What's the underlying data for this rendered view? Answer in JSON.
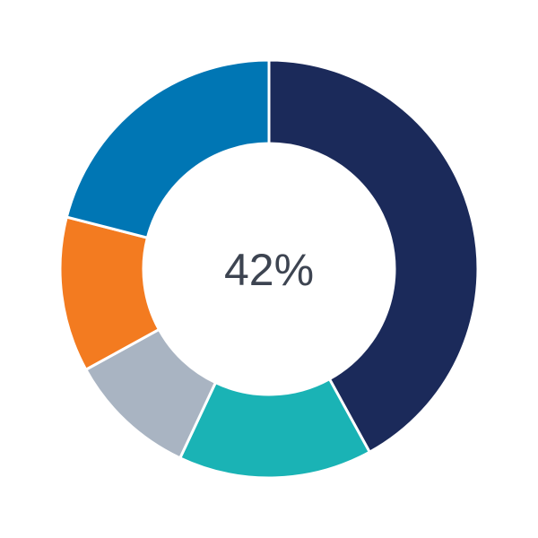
{
  "chart_data": {
    "type": "pie",
    "variant": "donut",
    "title": "",
    "center_label": "42%",
    "start": "top",
    "direction": "clockwise",
    "slices": [
      {
        "value": 42,
        "color": "#1b2a5a"
      },
      {
        "value": 15,
        "color": "#1ab3b5"
      },
      {
        "value": 10,
        "color": "#a9b4c2"
      },
      {
        "value": 12,
        "color": "#f37b20"
      },
      {
        "value": 21,
        "color": "#0076b4"
      }
    ]
  }
}
